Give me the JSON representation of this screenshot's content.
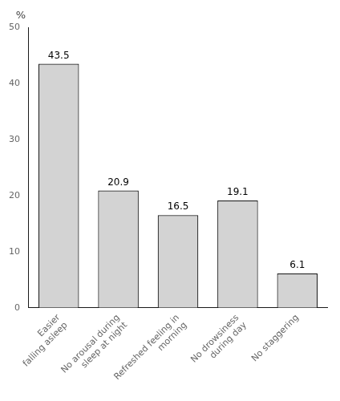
{
  "chart_data": {
    "type": "bar",
    "categories": [
      "Easier\nfalling asleep",
      "No arousal during\nsleep at night",
      "Refreshed feeling in\nmorning",
      "No drowsiness\nduring day",
      "No staggering"
    ],
    "values": [
      43.5,
      20.9,
      16.5,
      19.1,
      6.1
    ],
    "color": "#d3d3d3",
    "ylabel": "%",
    "ylim": [
      0,
      50
    ],
    "yticks": [
      0,
      10,
      20,
      30,
      40,
      50
    ],
    "grid": false,
    "data_labels": true
  }
}
